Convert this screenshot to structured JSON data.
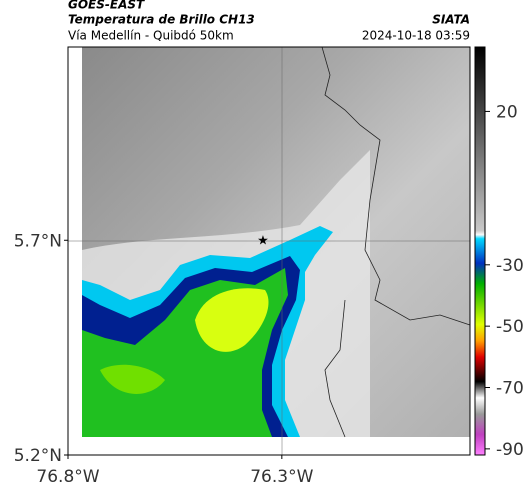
{
  "header": {
    "title": "GOES-EAST",
    "subtitle": "Temperatura de Brillo CH13",
    "source": "SIATA",
    "route": "Vía Medellín - Quibdó 50km",
    "timestamp": "2024-10-18 03:59"
  },
  "map": {
    "xlim": [
      -76.8,
      -75.86
    ],
    "ylim": [
      5.2,
      6.15
    ],
    "xticks": [
      {
        "value": -76.8,
        "label": "76.8°W"
      },
      {
        "value": -76.3,
        "label": "76.3°W"
      }
    ],
    "yticks": [
      {
        "value": 5.7,
        "label": "5.7°N"
      },
      {
        "value": 5.2,
        "label": "5.2°N"
      }
    ]
  },
  "colorbar": {
    "lim": [
      -92,
      41
    ],
    "ticks": [
      20,
      -30,
      -50,
      -70,
      -90
    ]
  }
}
